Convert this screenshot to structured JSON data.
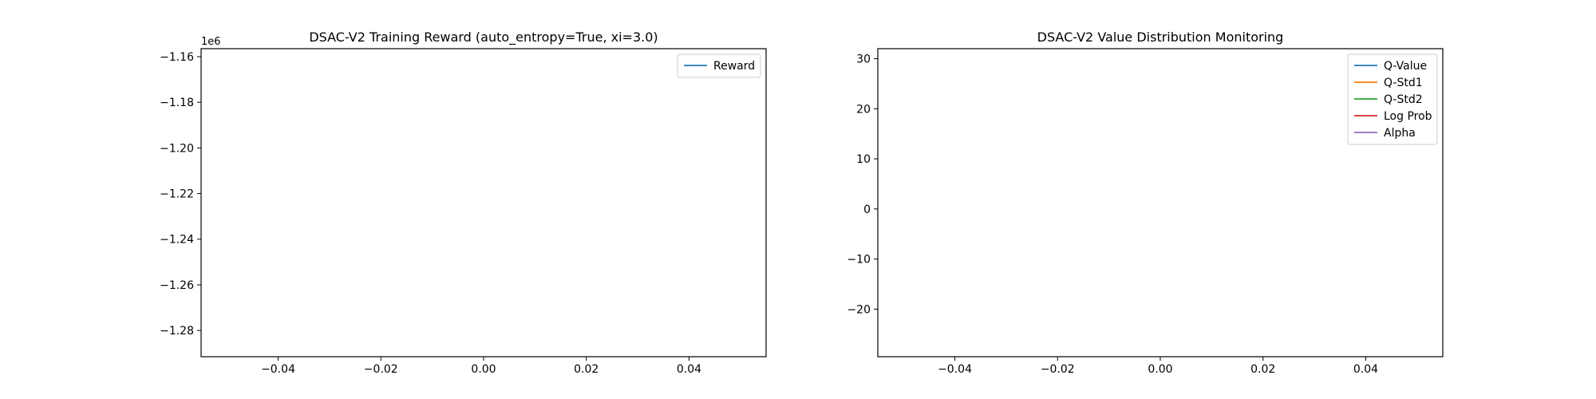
{
  "chart_data": [
    {
      "type": "line",
      "title": "DSAC-V2 Training Reward (auto_entropy=True, xi=3.0)",
      "xlabel": "",
      "ylabel": "",
      "y_offset_label": "1e6",
      "xlim": [
        -0.055,
        0.055
      ],
      "ylim": [
        -1.2915,
        -1.1565
      ],
      "x_ticks": [
        -0.04,
        -0.02,
        0.0,
        0.02,
        0.04
      ],
      "x_tick_labels": [
        "−0.04",
        "−0.02",
        "0.00",
        "0.02",
        "0.04"
      ],
      "y_ticks": [
        -1.16,
        -1.18,
        -1.2,
        -1.22,
        -1.24,
        -1.26,
        -1.28
      ],
      "y_tick_labels": [
        "−1.16",
        "−1.18",
        "−1.20",
        "−1.22",
        "−1.24",
        "−1.26",
        "−1.28"
      ],
      "legend_position": "top-right",
      "grid": false,
      "series": [
        {
          "name": "Reward",
          "color": "#1f77b4",
          "x": [],
          "y": []
        }
      ]
    },
    {
      "type": "line",
      "title": "DSAC-V2 Value Distribution Monitoring",
      "xlabel": "",
      "ylabel": "",
      "y_offset_label": "",
      "xlim": [
        -0.055,
        0.055
      ],
      "ylim": [
        -29.5,
        32
      ],
      "x_ticks": [
        -0.04,
        -0.02,
        0.0,
        0.02,
        0.04
      ],
      "x_tick_labels": [
        "−0.04",
        "−0.02",
        "0.00",
        "0.02",
        "0.04"
      ],
      "y_ticks": [
        30,
        20,
        10,
        0,
        -10,
        -20
      ],
      "y_tick_labels": [
        "30",
        "20",
        "10",
        "0",
        "−10",
        "−20"
      ],
      "legend_position": "top-right",
      "grid": false,
      "series": [
        {
          "name": "Q-Value",
          "color": "#1f77b4",
          "x": [],
          "y": []
        },
        {
          "name": "Q-Std1",
          "color": "#ff7f0e",
          "x": [],
          "y": []
        },
        {
          "name": "Q-Std2",
          "color": "#2ca02c",
          "x": [],
          "y": []
        },
        {
          "name": "Log Prob",
          "color": "#d62728",
          "x": [],
          "y": []
        },
        {
          "name": "Alpha",
          "color": "#9467bd",
          "x": [],
          "y": []
        }
      ]
    }
  ]
}
